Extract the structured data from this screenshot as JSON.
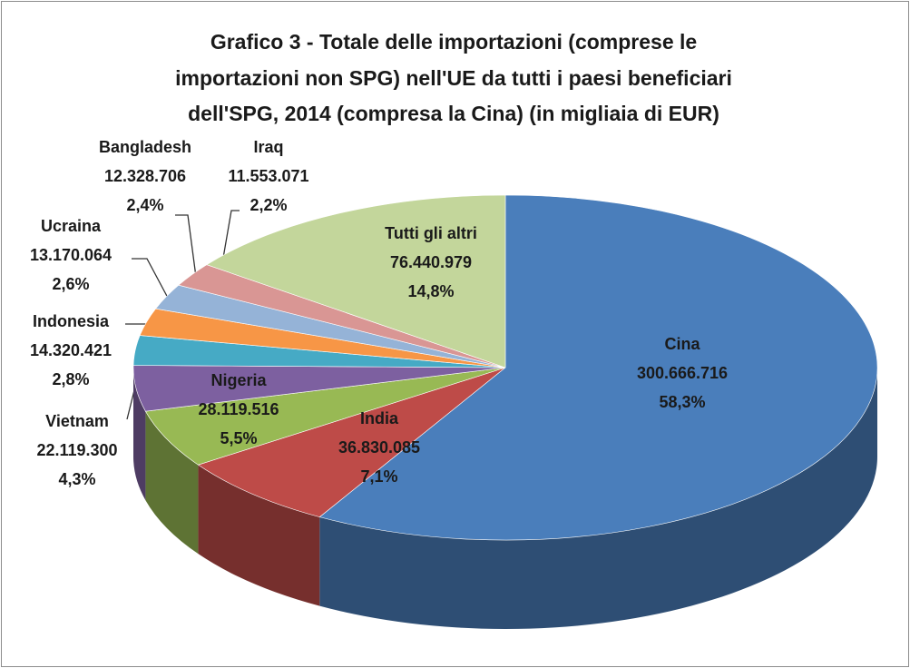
{
  "chart_data": {
    "type": "pie3d",
    "title": [
      "Grafico 3 - Totale delle importazioni (comprese le",
      "importazioni non SPG) nell'UE da tutti i paesi beneficiari",
      "dell'SPG, 2014 (compresa la Cina) (in migliaia di EUR)"
    ],
    "categories": [
      "Cina",
      "India",
      "Nigeria",
      "Vietnam",
      "Indonesia",
      "Ucraina",
      "Bangladesh",
      "Iraq",
      "Tutti gli altri"
    ],
    "values": [
      300666716,
      36830085,
      28119516,
      22119300,
      14320421,
      13170064,
      12328706,
      11553071,
      76440979
    ],
    "value_labels": [
      "300.666.716",
      "36.830.085",
      "28.119.516",
      "22.119.300",
      "14.320.421",
      "13.170.064",
      "12.328.706",
      "11.553.071",
      "76.440.979"
    ],
    "percentages": [
      58.3,
      7.1,
      5.5,
      4.3,
      2.8,
      2.6,
      2.4,
      2.2,
      14.8
    ],
    "percentage_labels": [
      "58,3%",
      "7,1%",
      "5,5%",
      "4,3%",
      "2,8%",
      "2,6%",
      "2,4%",
      "2,2%",
      "14,8%"
    ],
    "colors": [
      "#4a7ebb",
      "#be4b48",
      "#98b954",
      "#7d60a0",
      "#46aac5",
      "#f79646",
      "#95b3d7",
      "#d99694",
      "#c3d69b"
    ]
  }
}
